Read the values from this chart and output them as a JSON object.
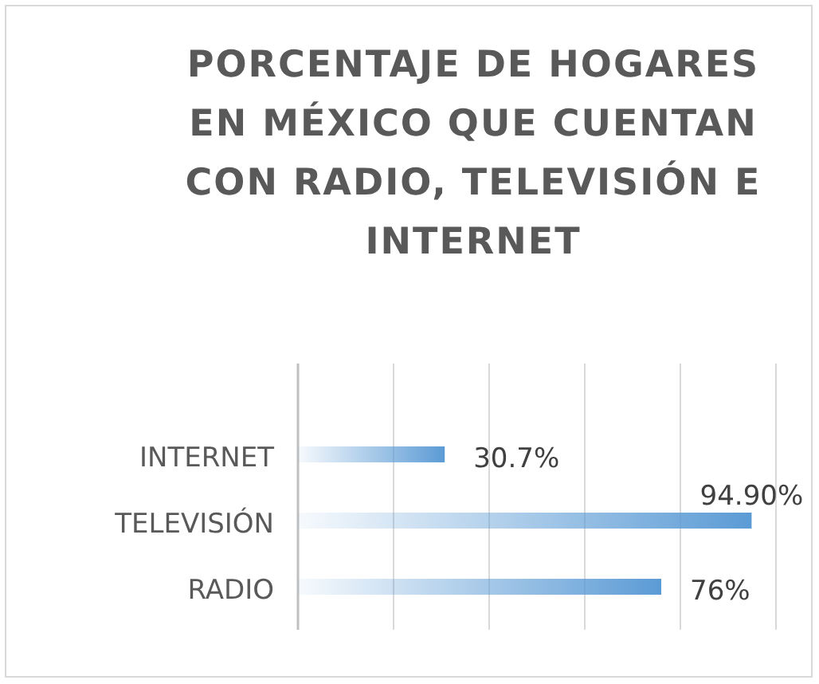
{
  "chart_data": {
    "type": "bar",
    "orientation": "horizontal",
    "title": "PORCENTAJE DE HOGARES EN MÉXICO QUE CUENTAN CON RADIO, TELEVISIÓN E INTERNET",
    "categories": [
      "INTERNET",
      "TELEVISIÓN",
      "RADIO"
    ],
    "values": [
      30.7,
      94.9,
      76
    ],
    "value_labels": [
      "30.7%",
      "94.90%",
      "76%"
    ],
    "color": "#5b9bd5",
    "xlim": [
      0,
      100
    ],
    "xticks": [
      {
        "value": 0,
        "label": null
      },
      {
        "value": 20,
        "label": null
      },
      {
        "value": 40,
        "label": null
      },
      {
        "value": 60,
        "label": null
      },
      {
        "value": 80,
        "label": null
      },
      {
        "value": 100,
        "label": null
      }
    ],
    "grid": "x",
    "tick_labels": "y"
  }
}
